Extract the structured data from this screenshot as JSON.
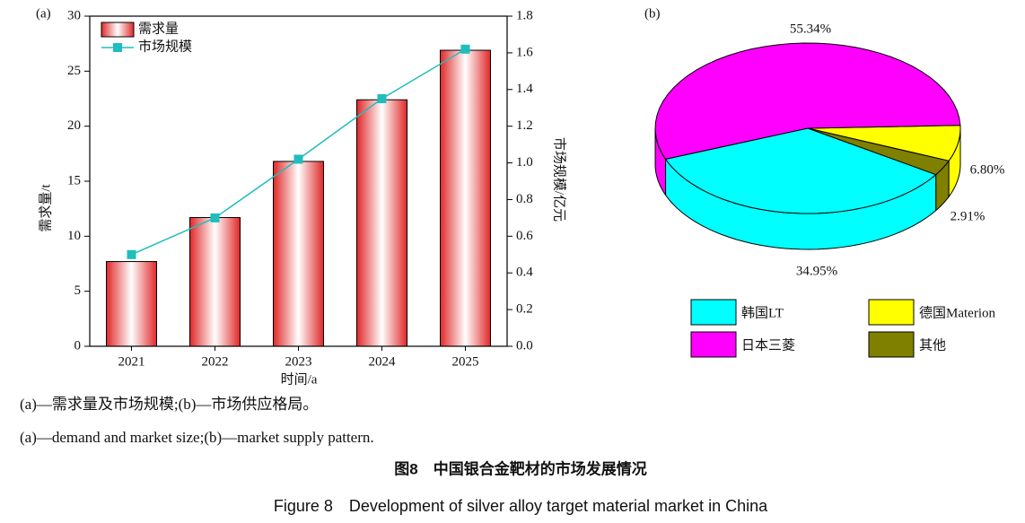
{
  "chart_data": [
    {
      "type": "bar",
      "panel_label": "(a)",
      "categories": [
        "2021",
        "2022",
        "2023",
        "2024",
        "2025"
      ],
      "series": [
        {
          "name": "需求量",
          "color": "#e02828",
          "values": [
            7.7,
            11.7,
            16.8,
            22.4,
            26.9
          ]
        },
        {
          "name": "市场规模",
          "color": "#1fbdbd",
          "axis": "y2",
          "type": "line",
          "values": [
            0.5,
            0.7,
            1.02,
            1.35,
            1.62
          ]
        }
      ],
      "x_label": "时间/a",
      "y_label": "需求量/t",
      "y2_label": "市场规模/亿元",
      "ylim": [
        0,
        30
      ],
      "yticks": [
        0,
        5,
        10,
        15,
        20,
        25,
        30
      ],
      "y2lim": [
        0,
        1.8
      ],
      "y2ticks": [
        {
          "value": 0,
          "label": "0.0"
        },
        0.2,
        0.4,
        0.6,
        0.8,
        {
          "value": 1,
          "label": "1.0"
        },
        1.2,
        1.4,
        1.6,
        1.8
      ]
    },
    {
      "type": "pie",
      "panel_label": "(b)",
      "categories": [
        "韩国LT",
        "德国Materion",
        "日本三菱",
        "其他"
      ],
      "values": [
        34.95,
        6.8,
        55.34,
        2.91
      ],
      "value_labels": [
        "34.95%",
        "6.80%",
        "55.34%",
        "2.91%"
      ],
      "colors": [
        "#00ffff",
        "#ffff00",
        "#ff00ff",
        "#808000"
      ]
    }
  ],
  "caption": {
    "line_cn": "(a)—需求量及市场规模;(b)—市场供应格局。",
    "line_en": "(a)—demand and market size;(b)—market supply pattern.",
    "figure_cn": "图8　中国银合金靶材的市场发展情况",
    "figure_en": "Figure 8　Development of silver alloy target material market in China"
  }
}
